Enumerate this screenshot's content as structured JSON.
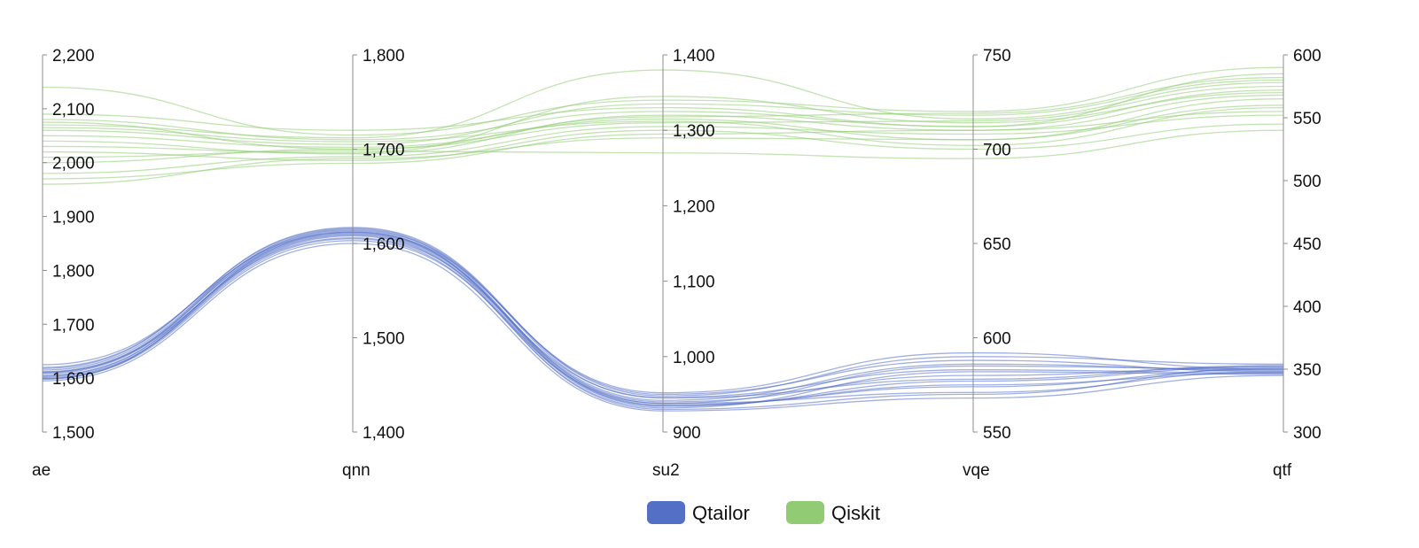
{
  "chart_data": {
    "type": "parallel",
    "colors": {
      "Qtailor": "#5470c6",
      "Qiskit": "#91cc75",
      "axis": "#8c8c8c"
    },
    "axes": [
      {
        "name": "ae",
        "min": 1500,
        "max": 2200,
        "ticks": [
          1500,
          1600,
          1700,
          1800,
          1900,
          2000,
          2100,
          2200
        ],
        "tick_labels": [
          "1,500",
          "1,600",
          "1,700",
          "1,800",
          "1,900",
          "2,000",
          "2,100",
          "2,200"
        ]
      },
      {
        "name": "qnn",
        "min": 1400,
        "max": 1800,
        "ticks": [
          1400,
          1500,
          1600,
          1700,
          1800
        ],
        "tick_labels": [
          "1,400",
          "1,500",
          "1,600",
          "1,700",
          "1,800"
        ]
      },
      {
        "name": "su2",
        "min": 900,
        "max": 1400,
        "ticks": [
          900,
          1000,
          1100,
          1200,
          1300,
          1400
        ],
        "tick_labels": [
          "900",
          "1,000",
          "1,100",
          "1,200",
          "1,300",
          "1,400"
        ]
      },
      {
        "name": "vqe",
        "min": 550,
        "max": 750,
        "ticks": [
          550,
          600,
          650,
          700,
          750
        ],
        "tick_labels": [
          "550",
          "600",
          "650",
          "700",
          "750"
        ]
      },
      {
        "name": "qtf",
        "min": 300,
        "max": 600,
        "ticks": [
          300,
          350,
          400,
          450,
          500,
          550,
          600
        ],
        "tick_labels": [
          "300",
          "350",
          "400",
          "450",
          "500",
          "550",
          "600"
        ]
      }
    ],
    "series": [
      {
        "name": "Qtailor",
        "lines": [
          [
            1598,
            1612,
            935,
            575,
            347
          ],
          [
            1605,
            1610,
            940,
            580,
            352
          ],
          [
            1610,
            1615,
            938,
            585,
            350
          ],
          [
            1615,
            1614,
            950,
            588,
            348
          ],
          [
            1600,
            1608,
            930,
            570,
            351
          ],
          [
            1620,
            1616,
            945,
            578,
            353
          ],
          [
            1602,
            1605,
            932,
            582,
            346
          ],
          [
            1612,
            1611,
            942,
            586,
            349
          ],
          [
            1608,
            1613,
            936,
            574,
            350
          ],
          [
            1595,
            1600,
            928,
            568,
            345
          ],
          [
            1618,
            1617,
            948,
            590,
            354
          ],
          [
            1604,
            1609,
            934,
            577,
            352
          ],
          [
            1611,
            1606,
            946,
            583,
            347
          ],
          [
            1625,
            1612,
            952,
            592,
            350
          ],
          [
            1599,
            1603,
            938,
            571,
            348
          ]
        ]
      },
      {
        "name": "Qiskit",
        "lines": [
          [
            1960,
            1690,
            1290,
            705,
            560
          ],
          [
            2000,
            1700,
            1310,
            715,
            575
          ],
          [
            2040,
            1695,
            1320,
            710,
            568
          ],
          [
            2060,
            1705,
            1335,
            718,
            580
          ],
          [
            2080,
            1710,
            1325,
            712,
            585
          ],
          [
            2020,
            1688,
            1300,
            700,
            545
          ],
          [
            2140,
            1715,
            1340,
            720,
            590
          ],
          [
            1980,
            1692,
            1305,
            708,
            552
          ],
          [
            2070,
            1712,
            1380,
            716,
            578
          ],
          [
            2010,
            1698,
            1270,
            695,
            540
          ],
          [
            2050,
            1702,
            1315,
            705,
            565
          ],
          [
            2090,
            1720,
            1330,
            712,
            572
          ],
          [
            1970,
            1685,
            1295,
            710,
            555
          ],
          [
            2030,
            1696,
            1345,
            714,
            570
          ],
          [
            2065,
            1708,
            1312,
            702,
            558
          ],
          [
            2075,
            1700,
            1318,
            719,
            582
          ]
        ]
      }
    ],
    "legend": {
      "position": "bottom",
      "items": [
        "Qtailor",
        "Qiskit"
      ]
    }
  }
}
